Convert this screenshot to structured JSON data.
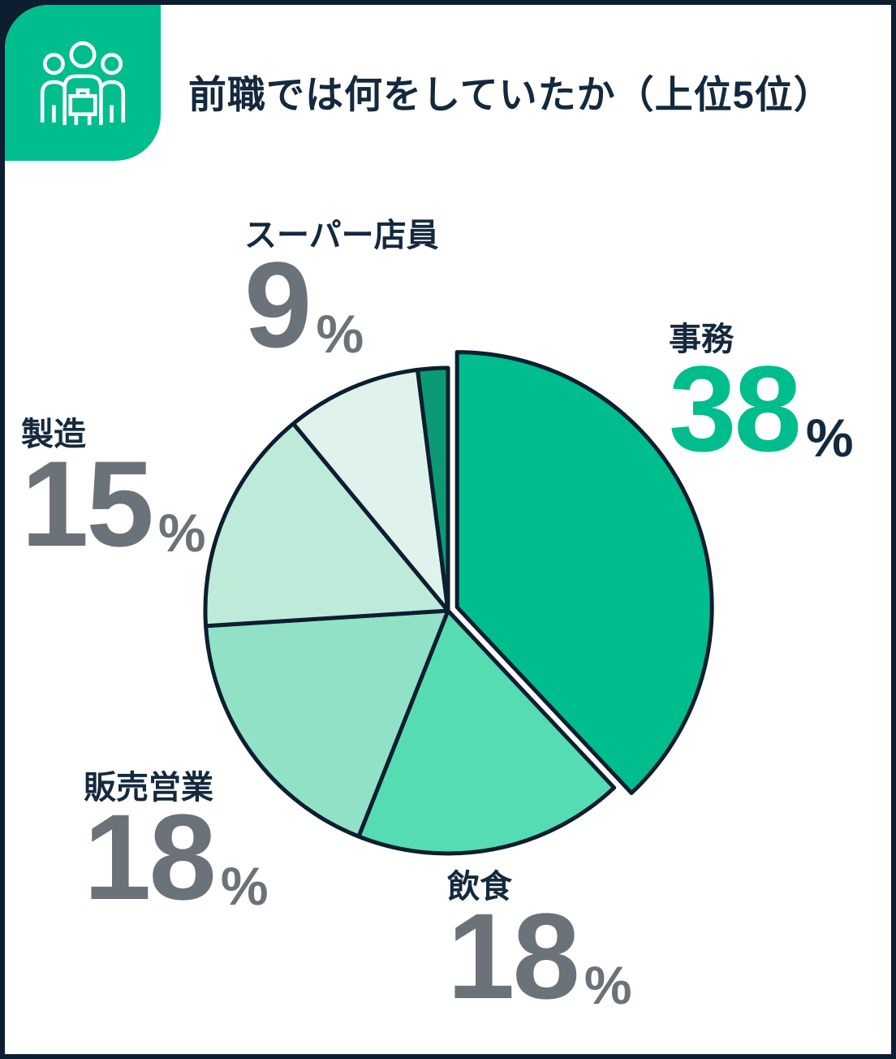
{
  "header": {
    "title": "前職では何をしていたか（上位5位）",
    "icon": "people-group-icon"
  },
  "chart_data": {
    "type": "pie",
    "title": "前職では何をしていたか（上位5位）",
    "unit": "%",
    "direction": "clockwise",
    "start_angle_deg": 0,
    "base_radius": 299,
    "slices": [
      {
        "label": "事務",
        "value": 38,
        "color": "#00bd8d",
        "emphasized": true,
        "radius": 314,
        "explode": 12
      },
      {
        "label": "飲食",
        "value": 18,
        "color": "#56dcb3"
      },
      {
        "label": "販売営業",
        "value": 18,
        "color": "#91e1c7"
      },
      {
        "label": "製造",
        "value": 15,
        "color": "#beeada"
      },
      {
        "label": "スーパー店員",
        "value": 9,
        "color": "#dff2eb"
      },
      {
        "label": "",
        "value": 2,
        "color": "#0b9a73"
      }
    ]
  },
  "callouts": [
    {
      "label": "事務",
      "value": "38",
      "unit": "%",
      "highlight": true
    },
    {
      "label": "飲食",
      "value": "18",
      "unit": "%"
    },
    {
      "label": "販売営業",
      "value": "18",
      "unit": "%"
    },
    {
      "label": "製造",
      "value": "15",
      "unit": "%"
    },
    {
      "label": "スーパー店員",
      "value": "9",
      "unit": "%"
    }
  ],
  "colors": {
    "accent_green": "#00bd8d",
    "dark_navy": "#0d1e30",
    "number_gray": "#6b7279",
    "card_bg": "#ffffff"
  }
}
